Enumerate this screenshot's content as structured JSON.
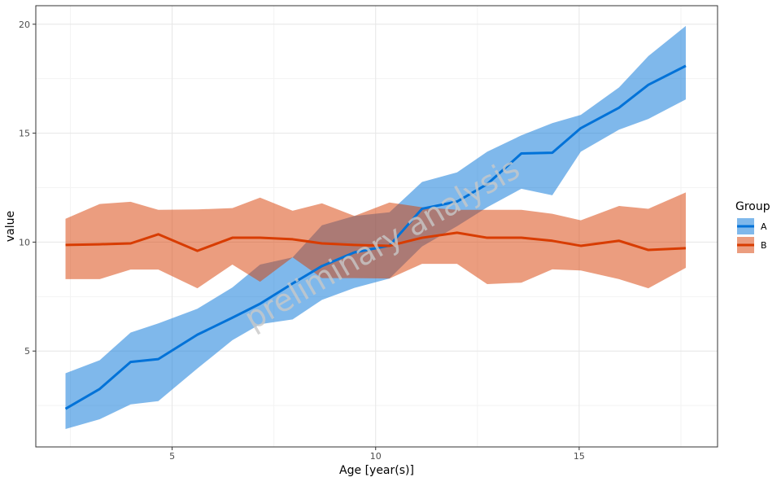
{
  "chart_data": {
    "type": "line",
    "xlabel": "Age [year(s)]",
    "ylabel": "value",
    "xlim": [
      1.65,
      18.4
    ],
    "ylim": [
      0.6,
      20.85
    ],
    "xticks": [
      5,
      10,
      15
    ],
    "yticks": [
      5,
      10,
      15,
      20
    ],
    "grid": true,
    "legend": {
      "title": "Group",
      "placement": "right"
    },
    "watermark": "preliminary analysis",
    "x": [
      2.38,
      3.22,
      3.98,
      4.66,
      5.62,
      6.48,
      7.16,
      7.96,
      8.68,
      9.48,
      10.34,
      11.14,
      12.0,
      12.74,
      13.58,
      14.34,
      15.04,
      15.98,
      16.7,
      17.62
    ],
    "series": [
      {
        "name": "A",
        "color": "#0072D8",
        "mean": [
          2.35,
          3.26,
          4.5,
          4.63,
          5.75,
          6.53,
          7.17,
          8.1,
          8.9,
          9.53,
          9.84,
          11.53,
          11.86,
          12.66,
          14.07,
          14.1,
          15.23,
          16.17,
          17.22,
          18.09
        ],
        "upper": [
          3.98,
          4.58,
          5.85,
          6.27,
          6.94,
          7.92,
          8.97,
          9.3,
          10.77,
          11.2,
          11.37,
          12.76,
          13.2,
          14.15,
          14.9,
          15.46,
          15.84,
          17.1,
          18.54,
          19.92
        ],
        "lower": [
          1.42,
          1.87,
          2.55,
          2.7,
          4.2,
          5.5,
          6.23,
          6.45,
          7.35,
          7.9,
          8.33,
          9.8,
          10.73,
          11.6,
          12.45,
          12.15,
          14.15,
          15.16,
          15.65,
          16.55
        ]
      },
      {
        "name": "B",
        "color": "#D83C00",
        "mean": [
          9.87,
          9.9,
          9.94,
          10.36,
          9.6,
          10.2,
          10.2,
          10.13,
          9.94,
          9.87,
          9.83,
          10.2,
          10.43,
          10.2,
          10.2,
          10.06,
          9.83,
          10.06,
          9.64,
          9.72
        ],
        "upper": [
          11.07,
          11.75,
          11.85,
          11.48,
          11.5,
          11.56,
          12.04,
          11.44,
          11.78,
          11.2,
          11.82,
          11.6,
          11.48,
          11.48,
          11.48,
          11.3,
          11.0,
          11.66,
          11.53,
          12.28
        ],
        "lower": [
          8.3,
          8.3,
          8.74,
          8.74,
          7.88,
          8.97,
          8.18,
          9.3,
          8.35,
          8.35,
          8.33,
          9.0,
          9.0,
          8.07,
          8.14,
          8.75,
          8.7,
          8.3,
          7.88,
          8.82
        ]
      }
    ]
  }
}
